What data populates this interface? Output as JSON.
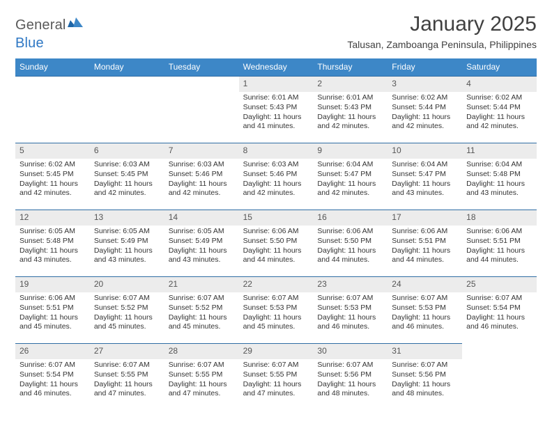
{
  "brand": {
    "part1": "General",
    "part2": "Blue"
  },
  "colors": {
    "header_bg": "#3d87c7",
    "cell_border": "#2e6da4",
    "daynum_bg": "#ececec",
    "text": "#333333",
    "logo_gray": "#5a5a5a",
    "logo_blue": "#2f78c4"
  },
  "title": "January 2025",
  "subtitle": "Talusan, Zamboanga Peninsula, Philippines",
  "weekdays": [
    "Sunday",
    "Monday",
    "Tuesday",
    "Wednesday",
    "Thursday",
    "Friday",
    "Saturday"
  ],
  "first_weekday_index": 3,
  "labels": {
    "sunrise": "Sunrise: ",
    "sunset": "Sunset: ",
    "daylight": "Daylight: "
  },
  "days": [
    {
      "n": 1,
      "sunrise": "6:01 AM",
      "sunset": "5:43 PM",
      "daylight": "11 hours and 41 minutes."
    },
    {
      "n": 2,
      "sunrise": "6:01 AM",
      "sunset": "5:43 PM",
      "daylight": "11 hours and 42 minutes."
    },
    {
      "n": 3,
      "sunrise": "6:02 AM",
      "sunset": "5:44 PM",
      "daylight": "11 hours and 42 minutes."
    },
    {
      "n": 4,
      "sunrise": "6:02 AM",
      "sunset": "5:44 PM",
      "daylight": "11 hours and 42 minutes."
    },
    {
      "n": 5,
      "sunrise": "6:02 AM",
      "sunset": "5:45 PM",
      "daylight": "11 hours and 42 minutes."
    },
    {
      "n": 6,
      "sunrise": "6:03 AM",
      "sunset": "5:45 PM",
      "daylight": "11 hours and 42 minutes."
    },
    {
      "n": 7,
      "sunrise": "6:03 AM",
      "sunset": "5:46 PM",
      "daylight": "11 hours and 42 minutes."
    },
    {
      "n": 8,
      "sunrise": "6:03 AM",
      "sunset": "5:46 PM",
      "daylight": "11 hours and 42 minutes."
    },
    {
      "n": 9,
      "sunrise": "6:04 AM",
      "sunset": "5:47 PM",
      "daylight": "11 hours and 42 minutes."
    },
    {
      "n": 10,
      "sunrise": "6:04 AM",
      "sunset": "5:47 PM",
      "daylight": "11 hours and 43 minutes."
    },
    {
      "n": 11,
      "sunrise": "6:04 AM",
      "sunset": "5:48 PM",
      "daylight": "11 hours and 43 minutes."
    },
    {
      "n": 12,
      "sunrise": "6:05 AM",
      "sunset": "5:48 PM",
      "daylight": "11 hours and 43 minutes."
    },
    {
      "n": 13,
      "sunrise": "6:05 AM",
      "sunset": "5:49 PM",
      "daylight": "11 hours and 43 minutes."
    },
    {
      "n": 14,
      "sunrise": "6:05 AM",
      "sunset": "5:49 PM",
      "daylight": "11 hours and 43 minutes."
    },
    {
      "n": 15,
      "sunrise": "6:06 AM",
      "sunset": "5:50 PM",
      "daylight": "11 hours and 44 minutes."
    },
    {
      "n": 16,
      "sunrise": "6:06 AM",
      "sunset": "5:50 PM",
      "daylight": "11 hours and 44 minutes."
    },
    {
      "n": 17,
      "sunrise": "6:06 AM",
      "sunset": "5:51 PM",
      "daylight": "11 hours and 44 minutes."
    },
    {
      "n": 18,
      "sunrise": "6:06 AM",
      "sunset": "5:51 PM",
      "daylight": "11 hours and 44 minutes."
    },
    {
      "n": 19,
      "sunrise": "6:06 AM",
      "sunset": "5:51 PM",
      "daylight": "11 hours and 45 minutes."
    },
    {
      "n": 20,
      "sunrise": "6:07 AM",
      "sunset": "5:52 PM",
      "daylight": "11 hours and 45 minutes."
    },
    {
      "n": 21,
      "sunrise": "6:07 AM",
      "sunset": "5:52 PM",
      "daylight": "11 hours and 45 minutes."
    },
    {
      "n": 22,
      "sunrise": "6:07 AM",
      "sunset": "5:53 PM",
      "daylight": "11 hours and 45 minutes."
    },
    {
      "n": 23,
      "sunrise": "6:07 AM",
      "sunset": "5:53 PM",
      "daylight": "11 hours and 46 minutes."
    },
    {
      "n": 24,
      "sunrise": "6:07 AM",
      "sunset": "5:53 PM",
      "daylight": "11 hours and 46 minutes."
    },
    {
      "n": 25,
      "sunrise": "6:07 AM",
      "sunset": "5:54 PM",
      "daylight": "11 hours and 46 minutes."
    },
    {
      "n": 26,
      "sunrise": "6:07 AM",
      "sunset": "5:54 PM",
      "daylight": "11 hours and 46 minutes."
    },
    {
      "n": 27,
      "sunrise": "6:07 AM",
      "sunset": "5:55 PM",
      "daylight": "11 hours and 47 minutes."
    },
    {
      "n": 28,
      "sunrise": "6:07 AM",
      "sunset": "5:55 PM",
      "daylight": "11 hours and 47 minutes."
    },
    {
      "n": 29,
      "sunrise": "6:07 AM",
      "sunset": "5:55 PM",
      "daylight": "11 hours and 47 minutes."
    },
    {
      "n": 30,
      "sunrise": "6:07 AM",
      "sunset": "5:56 PM",
      "daylight": "11 hours and 48 minutes."
    },
    {
      "n": 31,
      "sunrise": "6:07 AM",
      "sunset": "5:56 PM",
      "daylight": "11 hours and 48 minutes."
    }
  ]
}
